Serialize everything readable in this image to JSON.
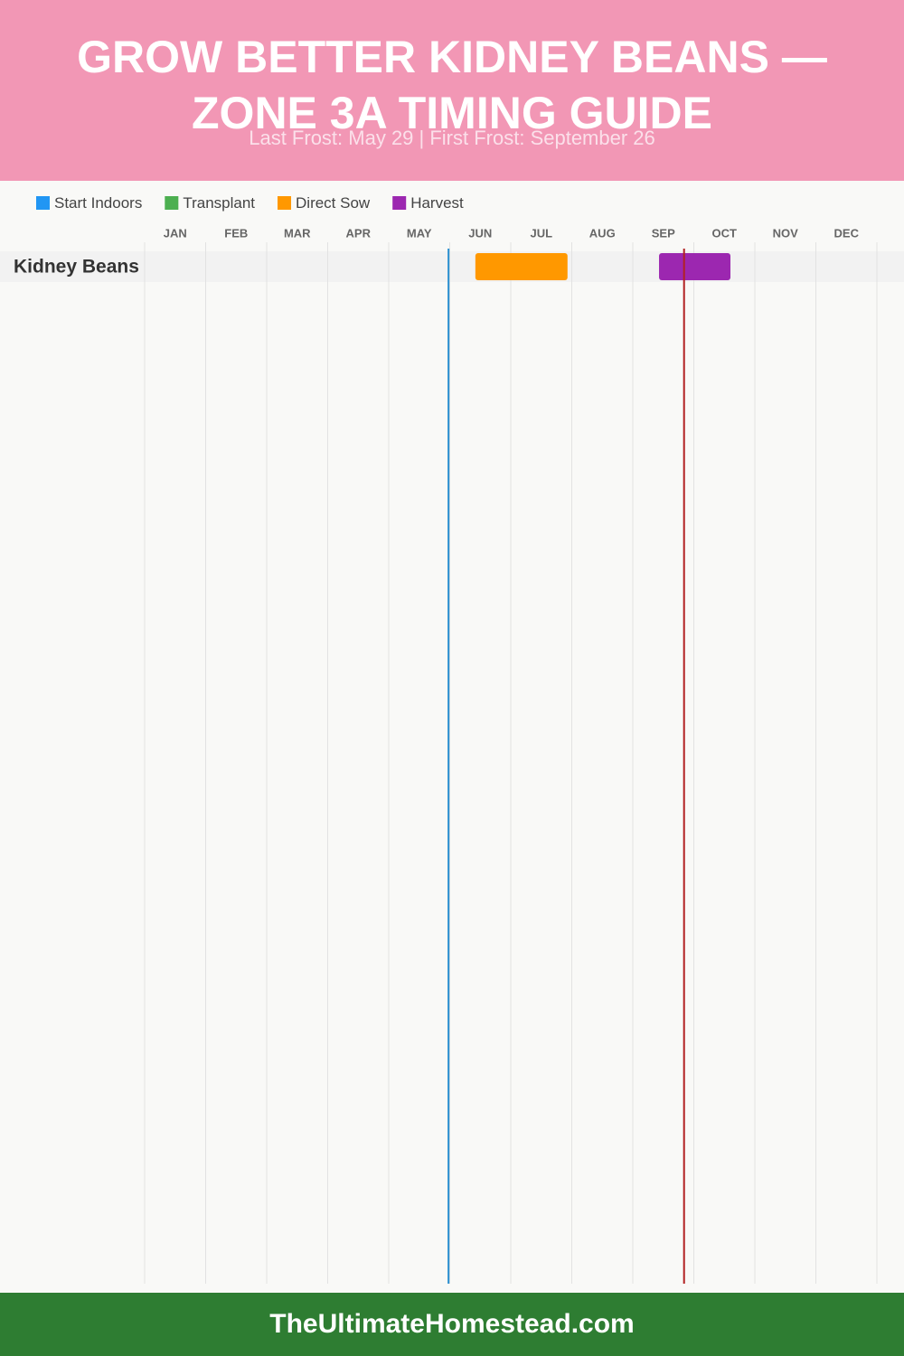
{
  "chart_data": {
    "type": "gantt",
    "title": "GROW BETTER KIDNEY BEANS — ZONE 3A TIMING GUIDE",
    "subtitle": "Last Frost: May 29 | First Frost: September 26",
    "categories": [
      "JAN",
      "FEB",
      "MAR",
      "APR",
      "MAY",
      "JUN",
      "JUL",
      "AUG",
      "SEP",
      "OCT",
      "NOV",
      "DEC"
    ],
    "xlim": [
      0,
      12
    ],
    "series": [
      {
        "name": "Start Indoors",
        "color": "#2196f3"
      },
      {
        "name": "Transplant",
        "color": "#4caf50"
      },
      {
        "name": "Direct Sow",
        "color": "#ff9800"
      },
      {
        "name": "Harvest",
        "color": "#9c27b0"
      }
    ],
    "rows": [
      {
        "name": "Kidney Beans",
        "tasks": [
          {
            "series": 2,
            "start": 5.42,
            "end": 6.93
          },
          {
            "series": 3,
            "start": 8.43,
            "end": 9.6
          }
        ]
      }
    ],
    "markers": [
      {
        "value": 4.98,
        "color": "#2a8fd0"
      },
      {
        "value": 8.84,
        "color": "#b22222"
      }
    ],
    "grid": true,
    "footer": "TheUltimateHomestead.com"
  }
}
